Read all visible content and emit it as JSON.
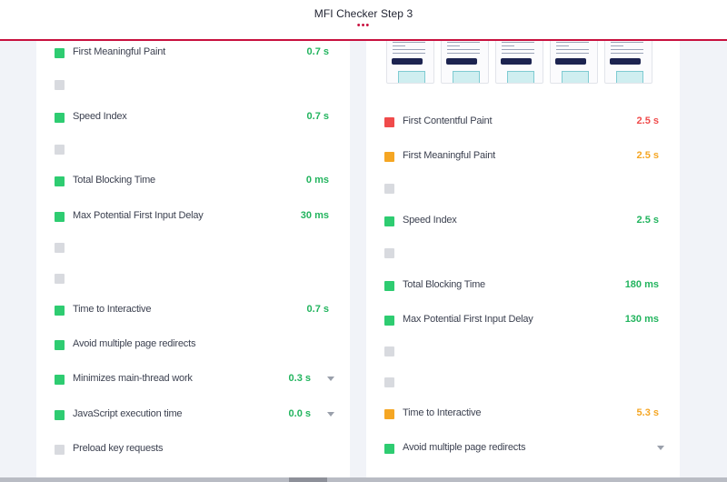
{
  "header": {
    "title": "MFI Checker Step 3",
    "dots": "•••"
  },
  "colors": {
    "accent": "#c8103e",
    "pass": "#22b45e",
    "average": "#f5a623",
    "fail": "#f04b4b",
    "neutral": "#d8dadf"
  },
  "left_panel": {
    "rows": [
      {
        "label": "First Meaningful Paint",
        "value": "0.7 s",
        "status": "pass"
      },
      {
        "label": "",
        "value": "",
        "status": "na"
      },
      {
        "label": "Speed Index",
        "value": "0.7 s",
        "status": "pass"
      },
      {
        "label": "",
        "value": "",
        "status": "na"
      },
      {
        "label": "Total Blocking Time",
        "value": "0 ms",
        "status": "pass"
      },
      {
        "label": "Max Potential First Input Delay",
        "value": "30 ms",
        "status": "pass"
      },
      {
        "label": "",
        "value": "",
        "status": "na"
      },
      {
        "label": "",
        "value": "",
        "status": "na"
      },
      {
        "label": "Time to Interactive",
        "value": "0.7 s",
        "status": "pass"
      },
      {
        "label": "Avoid multiple page redirects",
        "value": "",
        "status": "pass"
      },
      {
        "label": "Minimizes main-thread work",
        "value": "0.3 s",
        "status": "pass",
        "expandable": true
      },
      {
        "label": "JavaScript execution time",
        "value": "0.0 s",
        "status": "pass",
        "expandable": true
      },
      {
        "label": "Preload key requests",
        "value": "",
        "status": "na"
      }
    ]
  },
  "right_panel": {
    "thumbnail_count": 5,
    "thumbnail_icon": "page-screenshot-thumbnail",
    "rows": [
      {
        "label": "First Contentful Paint",
        "value": "2.5 s",
        "status": "fail"
      },
      {
        "label": "First Meaningful Paint",
        "value": "2.5 s",
        "status": "avg"
      },
      {
        "label": "",
        "value": "",
        "status": "na"
      },
      {
        "label": "Speed Index",
        "value": "2.5 s",
        "status": "pass"
      },
      {
        "label": "",
        "value": "",
        "status": "na"
      },
      {
        "label": "Total Blocking Time",
        "value": "180 ms",
        "status": "pass"
      },
      {
        "label": "Max Potential First Input Delay",
        "value": "130 ms",
        "status": "pass"
      },
      {
        "label": "",
        "value": "",
        "status": "na"
      },
      {
        "label": "",
        "value": "",
        "status": "na"
      },
      {
        "label": "Time to Interactive",
        "value": "5.3 s",
        "status": "avg"
      },
      {
        "label": "Avoid multiple page redirects",
        "value": "",
        "status": "pass",
        "expandable": true
      }
    ]
  }
}
